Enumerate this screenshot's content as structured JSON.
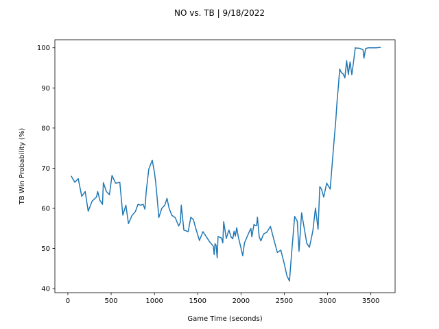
{
  "chart_data": {
    "type": "line",
    "title": "NO vs. TB | 9/18/2022",
    "xlabel": "Game Time (seconds)",
    "ylabel": "TB Win Probability (%)",
    "xlim": [
      -150,
      3780
    ],
    "ylim": [
      39,
      102
    ],
    "xticks": [
      0,
      500,
      1000,
      1500,
      2000,
      2500,
      3000,
      3500
    ],
    "yticks": [
      40,
      50,
      60,
      70,
      80,
      90,
      100
    ],
    "grid": false,
    "line_color": "#1f77b4",
    "series": [
      {
        "x": [
          40,
          80,
          120,
          160,
          200,
          235,
          280,
          330,
          345,
          370,
          400,
          410,
          445,
          480,
          510,
          550,
          560,
          600,
          635,
          670,
          700,
          740,
          780,
          810,
          840,
          870,
          890,
          905,
          935,
          975,
          1000,
          1015,
          1040,
          1050,
          1085,
          1120,
          1145,
          1170,
          1200,
          1240,
          1280,
          1300,
          1310,
          1340,
          1390,
          1420,
          1450,
          1475,
          1520,
          1560,
          1600,
          1640,
          1680,
          1690,
          1700,
          1712,
          1725,
          1735,
          1775,
          1790,
          1800,
          1830,
          1860,
          1885,
          1905,
          1920,
          1935,
          1950,
          1970,
          1990,
          2020,
          2040,
          2060,
          2100,
          2115,
          2125,
          2150,
          2165,
          2180,
          2190,
          2210,
          2230,
          2260,
          2300,
          2340,
          2380,
          2420,
          2460,
          2500,
          2530,
          2560,
          2580,
          2620,
          2650,
          2670,
          2700,
          2730,
          2760,
          2790,
          2810,
          2830,
          2860,
          2890,
          2910,
          2930,
          2955,
          2990,
          3030,
          3070,
          3095,
          3110,
          3125,
          3140,
          3160,
          3180,
          3200,
          3220,
          3240,
          3260,
          3280,
          3300,
          3320,
          3340,
          3360,
          3380,
          3410,
          3420,
          3440,
          3470,
          3510,
          3560,
          3610
        ],
        "y": [
          68,
          66.5,
          67.4,
          63,
          64.2,
          59.3,
          61.8,
          62.8,
          64.2,
          62,
          61,
          66.4,
          64.2,
          63.4,
          68.2,
          66.3,
          66.3,
          66.5,
          58.3,
          60.8,
          56.2,
          58.2,
          59.2,
          61,
          60.8,
          61,
          59.8,
          64.2,
          69.8,
          72,
          69,
          66.4,
          60.5,
          57.7,
          60,
          60.8,
          62.5,
          60,
          58.3,
          57.7,
          55.6,
          56.5,
          60.8,
          54.6,
          54.2,
          57.8,
          57.2,
          55.2,
          52,
          54.2,
          52.9,
          51.6,
          50.6,
          48.5,
          51.2,
          50.8,
          47.7,
          53,
          52.6,
          51.4,
          56.7,
          52.5,
          54.6,
          52.9,
          52.4,
          54.3,
          53.1,
          55.2,
          52.8,
          51,
          48.2,
          51.4,
          52.4,
          54.4,
          55,
          52.9,
          56,
          55.7,
          55.7,
          57.8,
          52.9,
          51.9,
          53.6,
          54.1,
          55.5,
          52.2,
          49,
          49.6,
          46.2,
          43.2,
          41.9,
          47.6,
          58,
          56.8,
          49.3,
          58.9,
          55.1,
          51.3,
          50.3,
          52.3,
          54.4,
          60.1,
          54.8,
          65.4,
          64.8,
          62.8,
          66.3,
          64.8,
          75.5,
          82,
          86.8,
          90.4,
          94.7,
          93.8,
          93.5,
          92.5,
          96.8,
          93.3,
          96.5,
          93.3,
          96.5,
          100,
          99.9,
          99.9,
          99.8,
          99.5,
          97.4,
          99.8,
          100,
          100,
          100,
          100.1
        ]
      }
    ]
  }
}
